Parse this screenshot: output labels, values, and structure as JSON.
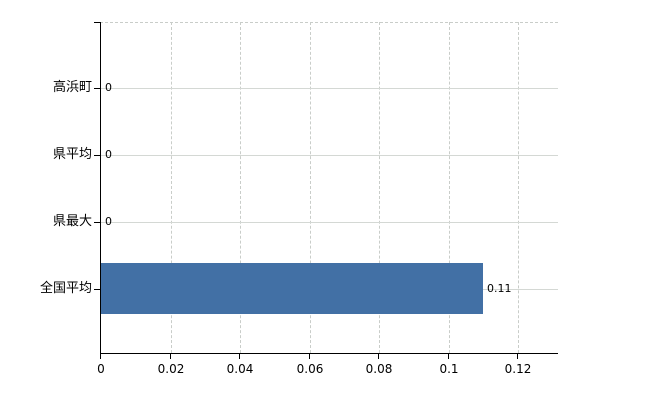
{
  "chart_data": {
    "type": "bar",
    "orientation": "horizontal",
    "title": "",
    "categories": [
      "高浜町",
      "県平均",
      "県最大",
      "全国平均"
    ],
    "values": [
      0,
      0,
      0,
      0.11
    ],
    "value_labels": [
      "0",
      "0",
      "0",
      "0.11"
    ],
    "x_tick_values": [
      0,
      0.02,
      0.04,
      0.06,
      0.08,
      0.1,
      0.12
    ],
    "x_tick_labels": [
      "0",
      "0.02",
      "0.04",
      "0.06",
      "0.08",
      "0.1",
      "0.12"
    ],
    "xlim": [
      0,
      0.1315
    ],
    "grid": {
      "vertical": "dashed",
      "horizontal": "solid",
      "top_border": "dashed"
    },
    "legend_visible": false,
    "colors": {
      "bar": "#4270a5",
      "axis": "#000000",
      "grid_dashed": "#c9cdc9",
      "grid_solid": "#d4d8d4",
      "text": "#000000",
      "background": "#ffffff"
    }
  }
}
